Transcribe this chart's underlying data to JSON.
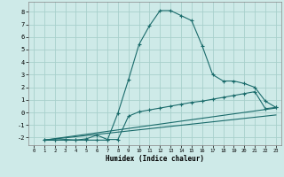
{
  "xlabel": "Humidex (Indice chaleur)",
  "background_color": "#ceeae8",
  "grid_color": "#a8d0cc",
  "line_color": "#1a6b6b",
  "xlim": [
    -0.5,
    23.5
  ],
  "ylim": [
    -2.6,
    8.8
  ],
  "xticks": [
    0,
    1,
    2,
    3,
    4,
    5,
    6,
    7,
    8,
    9,
    10,
    11,
    12,
    13,
    14,
    15,
    16,
    17,
    18,
    19,
    20,
    21,
    22,
    23
  ],
  "yticks": [
    -2,
    -1,
    0,
    1,
    2,
    3,
    4,
    5,
    6,
    7,
    8
  ],
  "curve1_x": [
    1,
    2,
    3,
    4,
    5,
    6,
    7,
    8,
    9,
    10,
    11,
    12,
    13,
    14,
    15,
    16,
    17,
    18,
    19,
    20,
    21,
    22,
    23
  ],
  "curve1_y": [
    -2.2,
    -2.2,
    -2.2,
    -2.2,
    -2.2,
    -2.2,
    -2.2,
    -0.05,
    2.6,
    5.4,
    6.9,
    8.1,
    8.1,
    7.7,
    7.3,
    5.3,
    3.0,
    2.5,
    2.5,
    2.3,
    2.0,
    0.9,
    0.4
  ],
  "curve2_x": [
    1,
    2,
    3,
    4,
    5,
    6,
    7,
    8,
    9,
    10,
    11,
    12,
    13,
    14,
    15,
    16,
    17,
    18,
    19,
    20,
    21,
    22,
    23
  ],
  "curve2_y": [
    -2.2,
    -2.2,
    -2.15,
    -2.2,
    -2.1,
    -1.8,
    -2.15,
    -2.15,
    -0.3,
    0.05,
    0.2,
    0.35,
    0.5,
    0.65,
    0.8,
    0.9,
    1.05,
    1.2,
    1.35,
    1.5,
    1.65,
    0.3,
    0.4
  ],
  "line1_x": [
    1,
    23
  ],
  "line1_y": [
    -2.2,
    0.35
  ],
  "line2_x": [
    1,
    23
  ],
  "line2_y": [
    -2.2,
    -0.2
  ]
}
